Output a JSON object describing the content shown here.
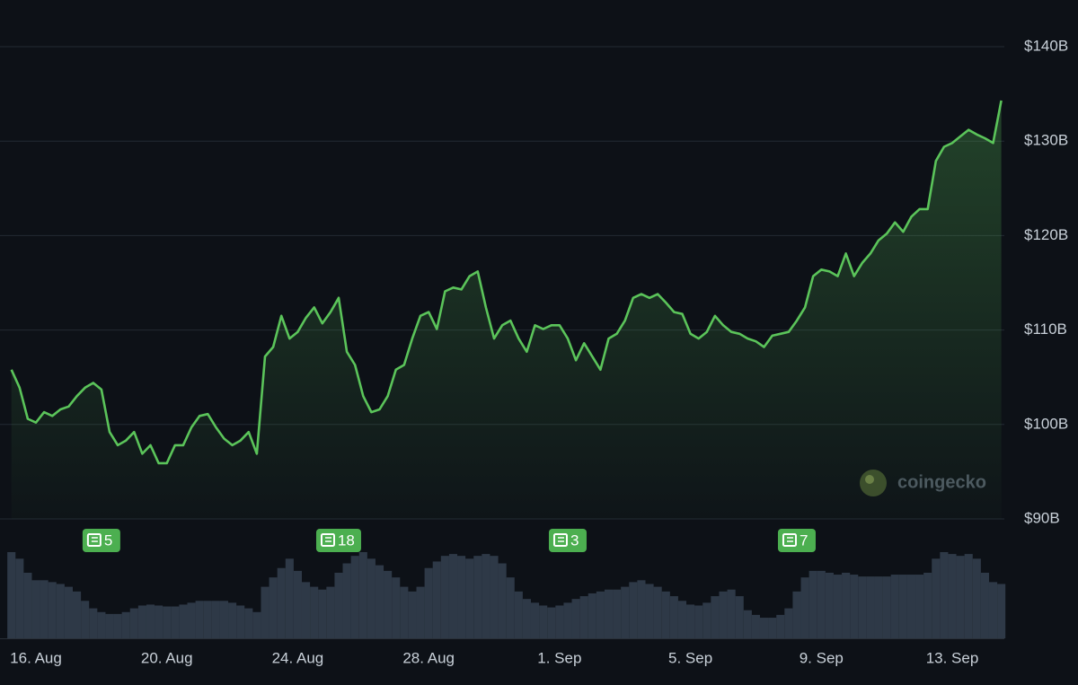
{
  "chart_data": {
    "type": "line",
    "watermark": "coingecko",
    "categories": [
      null,
      null,
      null,
      "16. Aug",
      null,
      null,
      null,
      null,
      null,
      null,
      null,
      null,
      null,
      null,
      null,
      null,
      null,
      null,
      null,
      "20. Aug",
      null,
      null,
      null,
      null,
      null,
      null,
      null,
      null,
      null,
      null,
      null,
      null,
      null,
      null,
      null,
      "24. Aug",
      null,
      null,
      null,
      null,
      null,
      null,
      null,
      null,
      null,
      null,
      null,
      null,
      null,
      null,
      null,
      "28. Aug",
      null,
      null,
      null,
      null,
      null,
      null,
      null,
      null,
      null,
      null,
      null,
      null,
      null,
      null,
      null,
      "1. Sep",
      null,
      null,
      null,
      null,
      null,
      null,
      null,
      null,
      null,
      null,
      null,
      null,
      null,
      null,
      null,
      "5. Sep",
      null,
      null,
      null,
      null,
      null,
      null,
      null,
      null,
      null,
      null,
      null,
      null,
      null,
      null,
      null,
      "9. Sep",
      null,
      null,
      null,
      null,
      null,
      null,
      null,
      null,
      null,
      null,
      null,
      null,
      null,
      null,
      null,
      "13. Sep",
      null,
      null,
      null,
      null,
      null,
      null
    ],
    "series": [
      {
        "color": "#5bc45a",
        "values": [
          105.8,
          103.9,
          100.6,
          100.2,
          101.3,
          100.9,
          101.6,
          101.9,
          103.0,
          103.9,
          104.4,
          103.7,
          99.2,
          97.8,
          98.3,
          99.2,
          96.9,
          97.8,
          95.9,
          95.9,
          97.8,
          97.8,
          99.7,
          100.9,
          101.1,
          99.7,
          98.5,
          97.8,
          98.3,
          99.2,
          96.9,
          107.2,
          108.2,
          111.5,
          109.1,
          109.8,
          111.3,
          112.4,
          110.7,
          111.9,
          113.4,
          107.7,
          106.3,
          103.0,
          101.3,
          101.6,
          103.0,
          105.8,
          106.3,
          109.1,
          111.5,
          111.9,
          110.1,
          114.1,
          114.5,
          114.3,
          115.7,
          116.2,
          112.4,
          109.1,
          110.5,
          111.0,
          109.1,
          107.7,
          110.5,
          110.1,
          110.5,
          110.5,
          109.1,
          106.8,
          108.6,
          107.2,
          105.8,
          109.1,
          109.6,
          111.0,
          113.4,
          113.8,
          113.4,
          113.8,
          112.9,
          111.9,
          111.7,
          109.6,
          109.1,
          109.8,
          111.5,
          110.5,
          109.8,
          109.6,
          109.1,
          108.8,
          108.2,
          109.4,
          109.6,
          109.8,
          111.0,
          112.4,
          115.7,
          116.4,
          116.2,
          115.7,
          118.1,
          115.7,
          117.1,
          118.1,
          119.5,
          120.2,
          121.4,
          120.4,
          122.0,
          122.8,
          122.8,
          127.9,
          129.4,
          129.8,
          130.5,
          131.2,
          130.7,
          130.3,
          129.8,
          134.3
        ]
      }
    ],
    "volume": {
      "color": "#2e3947",
      "values": [
        92,
        85,
        70,
        62,
        62,
        60,
        58,
        55,
        50,
        40,
        32,
        28,
        26,
        26,
        28,
        32,
        35,
        36,
        35,
        34,
        34,
        36,
        38,
        40,
        40,
        40,
        40,
        38,
        35,
        32,
        28,
        55,
        65,
        75,
        85,
        72,
        60,
        55,
        52,
        55,
        70,
        80,
        88,
        92,
        85,
        78,
        72,
        65,
        55,
        50,
        55,
        75,
        82,
        88,
        90,
        88,
        85,
        88,
        90,
        88,
        80,
        65,
        50,
        42,
        38,
        35,
        33,
        35,
        38,
        42,
        45,
        48,
        50,
        52,
        52,
        55,
        60,
        62,
        58,
        55,
        50,
        45,
        40,
        36,
        35,
        38,
        45,
        50,
        52,
        45,
        30,
        25,
        22,
        22,
        25,
        32,
        50,
        65,
        72,
        72,
        70,
        68,
        70,
        68,
        66,
        66,
        66,
        66,
        68,
        68,
        68,
        68,
        70,
        85,
        92,
        90,
        88,
        90,
        85,
        70,
        60,
        58
      ]
    },
    "news": [
      null,
      null,
      null,
      null,
      null,
      null,
      null,
      null,
      null,
      null,
      null,
      5,
      null,
      null,
      null,
      null,
      null,
      null,
      null,
      null,
      null,
      null,
      null,
      null,
      null,
      null,
      null,
      null,
      null,
      null,
      null,
      null,
      null,
      null,
      null,
      null,
      null,
      null,
      null,
      null,
      18,
      null,
      null,
      null,
      null,
      null,
      null,
      null,
      null,
      null,
      null,
      null,
      null,
      null,
      null,
      null,
      null,
      null,
      null,
      null,
      null,
      null,
      null,
      null,
      null,
      null,
      null,
      null,
      3,
      null,
      null,
      null,
      null,
      null,
      null,
      null,
      null,
      null,
      null,
      null,
      null,
      null,
      null,
      null,
      null,
      null,
      null,
      null,
      null,
      null,
      null,
      null,
      null,
      null,
      null,
      null,
      7,
      null,
      null,
      null,
      null,
      null,
      null,
      null,
      null,
      null,
      null,
      null,
      null,
      null,
      null,
      null,
      null,
      null,
      null,
      null,
      null,
      null,
      null,
      null,
      null,
      null
    ],
    "ylim": [
      90,
      140
    ],
    "yticks": [
      {
        "value": 90,
        "label": "$90B"
      },
      {
        "value": 100,
        "label": "$100B"
      },
      {
        "value": 110,
        "label": "$110B"
      },
      {
        "value": 120,
        "label": "$120B"
      },
      {
        "value": 130,
        "label": "$130B"
      },
      {
        "value": 140,
        "label": "$140B"
      }
    ],
    "grid": true
  }
}
